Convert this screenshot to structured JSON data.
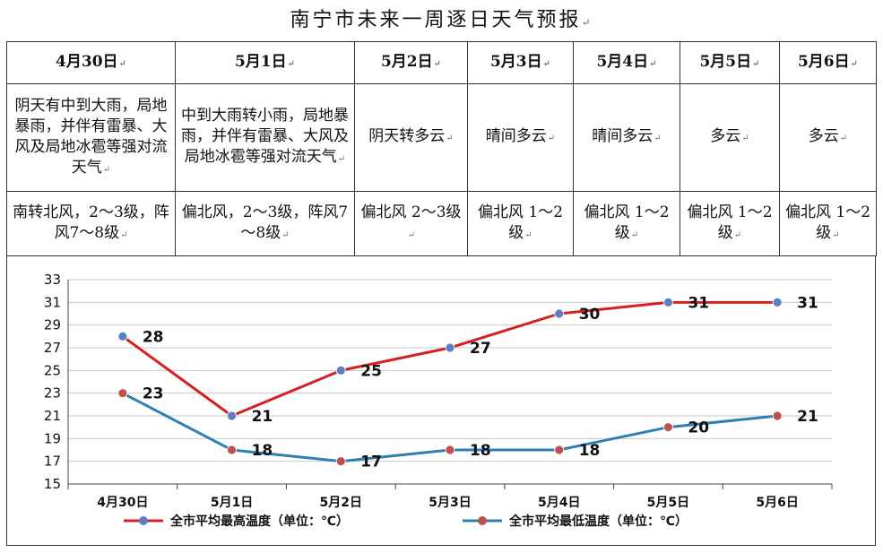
{
  "title": "南宁市未来一周逐日天气预报",
  "para_mark": "↵",
  "forecast": {
    "days": [
      {
        "date": "4月30日",
        "weather": "阴天有中到大雨，局地暴雨，并伴有雷暴、大风及局地冰雹等强对流天气",
        "wind": "南转北风，2～3级，阵风7～8级"
      },
      {
        "date": "5月1日",
        "weather": "中到大雨转小雨，局地暴雨，并伴有雷暴、大风及局地冰雹等强对流天气",
        "wind": "偏北风，2～3级，阵风7～8级"
      },
      {
        "date": "5月2日",
        "weather": "阴天转多云",
        "wind": "偏北风 2～3级"
      },
      {
        "date": "5月3日",
        "weather": "晴间多云",
        "wind": "偏北风 1～2级"
      },
      {
        "date": "5月4日",
        "weather": "晴间多云",
        "wind": "偏北风 1～2级"
      },
      {
        "date": "5月5日",
        "weather": "多云",
        "wind": "偏北风 1～2级"
      },
      {
        "date": "5月6日",
        "weather": "多云",
        "wind": "偏北风 1～2级"
      }
    ]
  },
  "chart_data": {
    "type": "line",
    "categories": [
      "4月30日",
      "5月1日",
      "5月2日",
      "5月3日",
      "5月4日",
      "5月5日",
      "5月6日"
    ],
    "series": [
      {
        "name": "全市平均最高温度（单位：℃）",
        "values": [
          28,
          21,
          25,
          27,
          30,
          31,
          31
        ],
        "line_color": "#d42020",
        "marker_color": "#5b7fc4"
      },
      {
        "name": "全市平均最低温度（单位：℃）",
        "values": [
          23,
          18,
          17,
          18,
          18,
          20,
          21
        ],
        "line_color": "#2e7fb5",
        "marker_color": "#c05050"
      }
    ],
    "ylim": [
      15,
      33
    ],
    "yticks": [
      15,
      17,
      19,
      21,
      23,
      25,
      27,
      29,
      31,
      33
    ],
    "grid": true,
    "legend_position": "bottom",
    "data_labels": true
  }
}
